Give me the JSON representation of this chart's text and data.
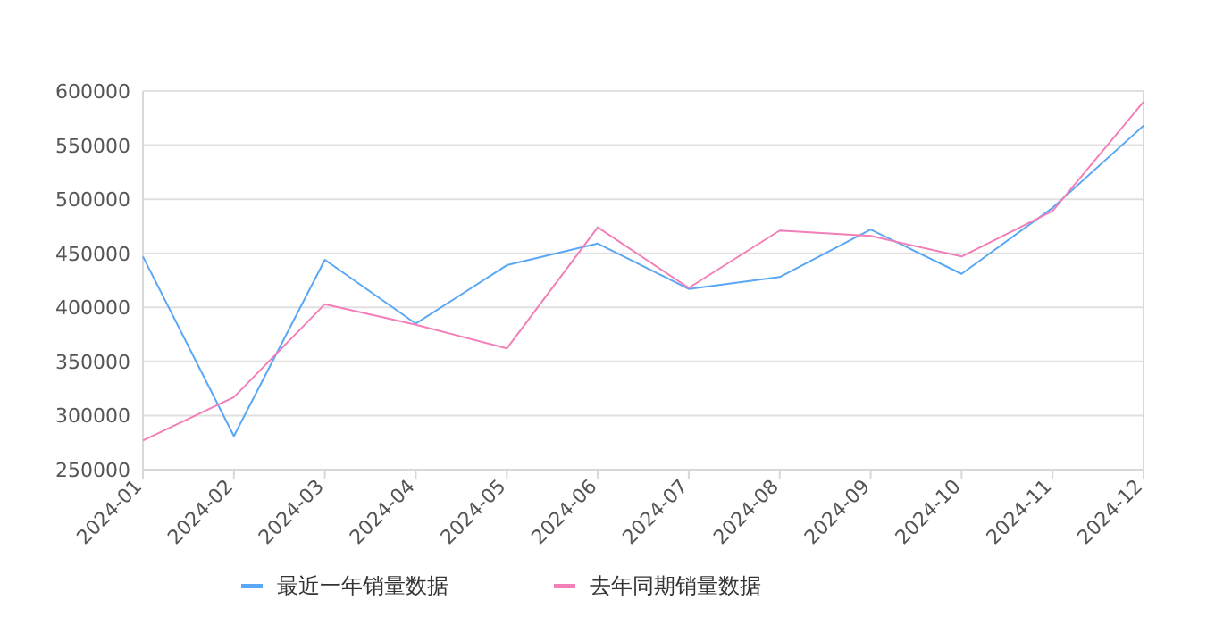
{
  "chart_data": {
    "type": "line",
    "categories": [
      "2024-01",
      "2024-02",
      "2024-03",
      "2024-04",
      "2024-05",
      "2024-06",
      "2024-07",
      "2024-08",
      "2024-09",
      "2024-10",
      "2024-11",
      "2024-12"
    ],
    "series": [
      {
        "name": "最近一年销量数据",
        "color": "#5aa7f5",
        "values": [
          447000,
          281000,
          444000,
          385000,
          439000,
          459000,
          417000,
          428000,
          472000,
          431000,
          492000,
          568000
        ]
      },
      {
        "name": "去年同期销量数据",
        "color": "#f27fb8",
        "values": [
          277000,
          317000,
          403000,
          384000,
          362000,
          474000,
          418000,
          471000,
          466000,
          447000,
          489000,
          590000
        ]
      }
    ],
    "ylim": [
      250000,
      600000
    ],
    "yticks": [
      250000,
      300000,
      350000,
      400000,
      450000,
      500000,
      550000,
      600000
    ],
    "grid": "y",
    "legend": "bottom",
    "marker": "none",
    "line_style": "solid"
  }
}
